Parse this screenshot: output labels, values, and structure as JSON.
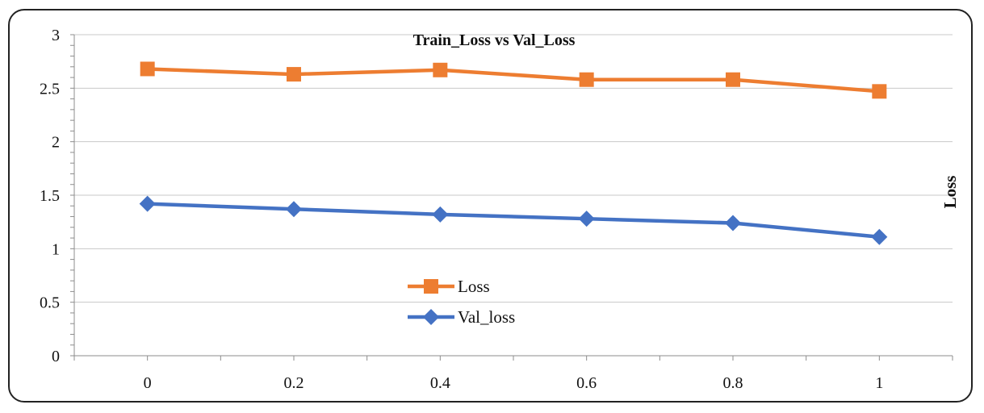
{
  "chart_data": {
    "type": "line",
    "title": "Train_Loss vs Val_Loss",
    "xlabel": "",
    "ylabel": "Loss",
    "x": [
      0,
      0.2,
      0.4,
      0.6,
      0.8,
      1
    ],
    "x_tick_labels": [
      "0",
      "0.2",
      "0.4",
      "0.6",
      "0.8",
      "1"
    ],
    "y_tick_labels": [
      "0",
      "0.5",
      "1",
      "1.5",
      "2",
      "2.5",
      "3"
    ],
    "ylim": [
      0,
      3
    ],
    "grid": true,
    "legend_position": "center-left",
    "series": [
      {
        "name": "Loss",
        "color": "#ED7D31",
        "marker": "square",
        "values": [
          2.68,
          2.63,
          2.67,
          2.58,
          2.58,
          2.47
        ]
      },
      {
        "name": "Val_loss",
        "color": "#4472C4",
        "marker": "diamond",
        "values": [
          1.42,
          1.37,
          1.32,
          1.28,
          1.24,
          1.11
        ]
      }
    ]
  }
}
